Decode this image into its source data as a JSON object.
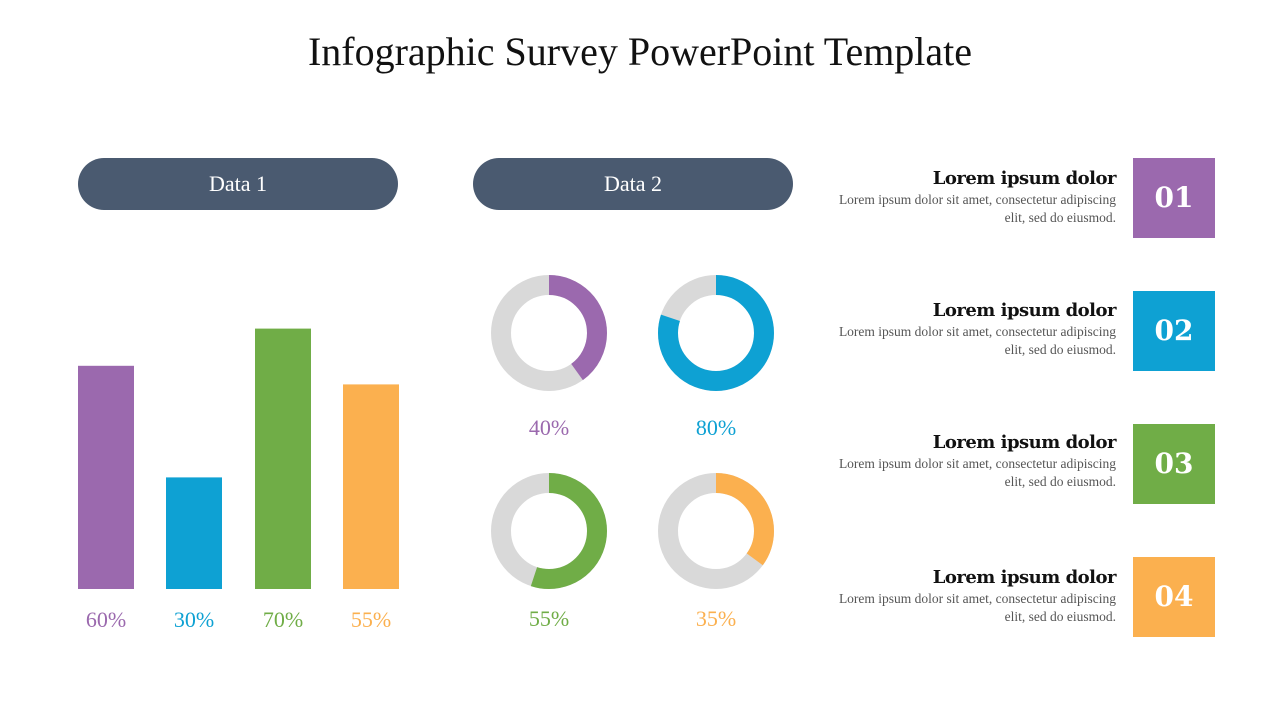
{
  "title": "Infographic Survey PowerPoint Template",
  "colors": {
    "purple": "#9b69ae",
    "blue": "#0ea1d3",
    "green": "#70ad47",
    "orange": "#fbb04f",
    "pill": "#4a5a70",
    "track": "#d9d9d9"
  },
  "chart_data": [
    {
      "type": "bar",
      "header": "Data 1",
      "categories": [
        "60%",
        "30%",
        "70%",
        "55%"
      ],
      "values": [
        60,
        30,
        70,
        55
      ],
      "value_labels": [
        "60%",
        "30%",
        "70%",
        "55%"
      ],
      "colors": [
        "#9b69ae",
        "#0ea1d3",
        "#70ad47",
        "#fbb04f"
      ],
      "ylim": [
        0,
        100
      ]
    },
    {
      "type": "pie",
      "variant": "donut",
      "header": "Data 2",
      "values": [
        40,
        80,
        55,
        35
      ],
      "value_labels": [
        "40%",
        "80%",
        "55%",
        "35%"
      ],
      "colors": [
        "#9b69ae",
        "#0ea1d3",
        "#70ad47",
        "#fbb04f"
      ]
    }
  ],
  "items": [
    {
      "heading": "Lorem ipsum dolor",
      "text": "Lorem ipsum dolor sit amet, consectetur adipiscing elit, sed do eiusmod.",
      "number": "01",
      "color": "#9b69ae"
    },
    {
      "heading": "Lorem ipsum dolor",
      "text": "Lorem ipsum dolor sit amet, consectetur adipiscing elit, sed do eiusmod.",
      "number": "02",
      "color": "#0ea1d3"
    },
    {
      "heading": "Lorem ipsum dolor",
      "text": "Lorem ipsum dolor sit amet, consectetur adipiscing elit, sed do eiusmod.",
      "number": "03",
      "color": "#70ad47"
    },
    {
      "heading": "Lorem ipsum dolor",
      "text": "Lorem ipsum dolor sit amet, consectetur adipiscing elit, sed do eiusmod.",
      "number": "04",
      "color": "#fbb04f"
    }
  ]
}
